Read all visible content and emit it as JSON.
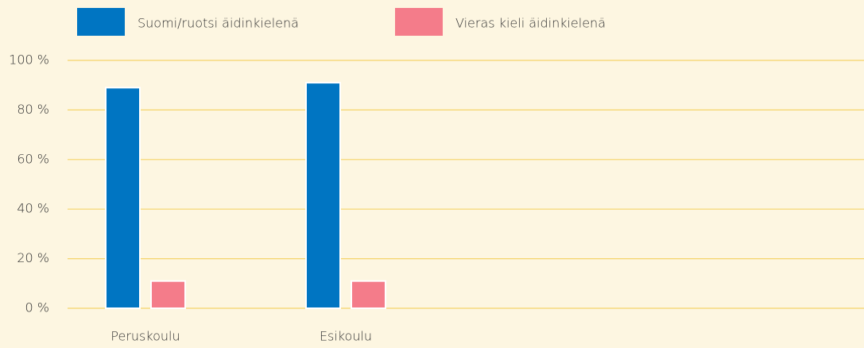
{
  "chart_data": {
    "type": "bar",
    "categories": [
      "Peruskoulu",
      "Esikoulu"
    ],
    "series": [
      {
        "name": "Suomi/ruotsi äidinkielenä",
        "color": "#0075c2",
        "values": [
          89,
          91
        ]
      },
      {
        "name": "Vieras kieli äidinkielenä",
        "color": "#f47c8a",
        "values": [
          11,
          11
        ]
      }
    ],
    "ylim": [
      0,
      100
    ],
    "yticks": [
      {
        "value": 0,
        "label": "0 %"
      },
      {
        "value": 20,
        "label": "20 %"
      },
      {
        "value": 40,
        "label": "40 %"
      },
      {
        "value": 60,
        "label": "60 %"
      },
      {
        "value": 80,
        "label": "80 %"
      },
      {
        "value": 100,
        "label": "100 %"
      }
    ],
    "grid": true,
    "grid_color": "#f5d46a",
    "legend": "top"
  }
}
